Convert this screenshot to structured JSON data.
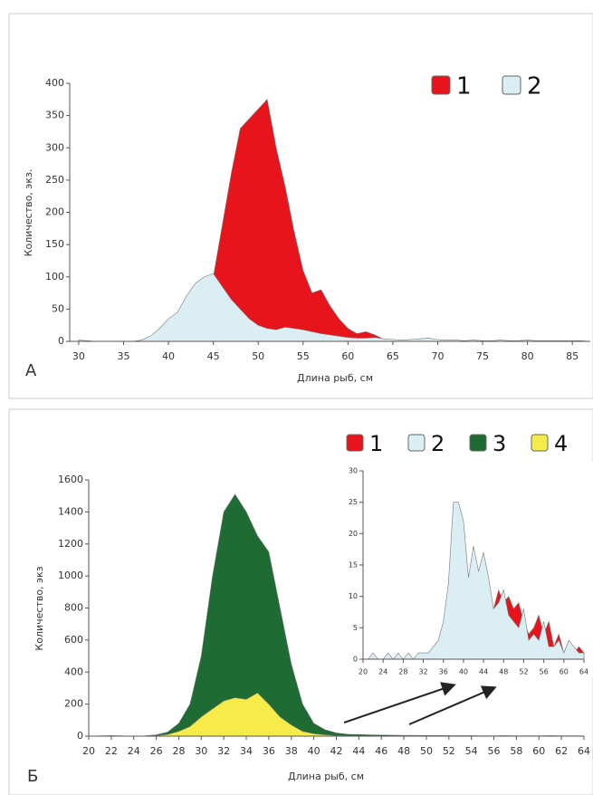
{
  "chart_data": [
    {
      "type": "area",
      "label": "А",
      "xlabel": "Длина рыб, см",
      "ylabel": "Количество, экз.",
      "x": [
        30,
        31,
        32,
        33,
        34,
        35,
        36,
        37,
        38,
        39,
        40,
        41,
        42,
        43,
        44,
        45,
        46,
        47,
        48,
        49,
        50,
        51,
        52,
        53,
        54,
        55,
        56,
        57,
        58,
        59,
        60,
        61,
        62,
        63,
        64,
        65,
        66,
        67,
        68,
        69,
        70,
        71,
        72,
        73,
        74,
        75,
        76,
        77,
        78,
        79,
        80,
        81,
        82,
        83,
        84,
        85,
        86,
        87
      ],
      "series": [
        {
          "name": "1",
          "color": "#e8141c",
          "values": [
            0,
            0,
            0,
            0,
            0,
            0,
            0,
            0,
            0,
            0,
            0,
            0,
            0,
            0,
            0,
            100,
            180,
            260,
            330,
            345,
            360,
            375,
            300,
            240,
            170,
            110,
            75,
            80,
            55,
            35,
            20,
            12,
            15,
            10,
            3,
            1,
            0,
            0,
            0,
            0,
            0,
            0,
            0,
            0,
            0,
            0,
            0,
            0,
            0,
            0,
            0,
            0,
            0,
            0,
            0,
            0,
            0,
            0
          ]
        },
        {
          "name": "2",
          "color": "#daeef3",
          "values": [
            2,
            1,
            0,
            0,
            0,
            0,
            0,
            2,
            8,
            20,
            35,
            45,
            70,
            90,
            100,
            105,
            85,
            65,
            50,
            35,
            25,
            20,
            18,
            22,
            20,
            18,
            15,
            12,
            10,
            8,
            6,
            5,
            5,
            6,
            4,
            3,
            2,
            3,
            4,
            5,
            3,
            2,
            2,
            1,
            2,
            1,
            1,
            2,
            1,
            1,
            2,
            1,
            1,
            1,
            1,
            1,
            1,
            0
          ]
        }
      ],
      "xlim": [
        29,
        87
      ],
      "xticks": [
        30,
        35,
        40,
        45,
        50,
        55,
        60,
        65,
        70,
        75,
        80,
        85
      ],
      "ylim": [
        0,
        400
      ],
      "yticks": [
        0,
        50,
        100,
        150,
        200,
        250,
        300,
        350,
        400
      ]
    },
    {
      "type": "area",
      "label": "Б",
      "xlabel": "Длина рыб, см",
      "ylabel": "Количество, экз",
      "x": [
        20,
        21,
        22,
        23,
        24,
        25,
        26,
        27,
        28,
        29,
        30,
        31,
        32,
        33,
        34,
        35,
        36,
        37,
        38,
        39,
        40,
        41,
        42,
        43,
        44,
        45,
        46,
        47,
        48,
        49,
        50,
        51,
        52,
        53,
        54,
        55,
        56,
        57,
        58,
        59,
        60,
        61,
        62,
        63,
        64
      ],
      "series": [
        {
          "name": "3",
          "color": "#1e6b34",
          "values": [
            0,
            2,
            3,
            2,
            0,
            2,
            8,
            25,
            80,
            200,
            500,
            1000,
            1400,
            1510,
            1400,
            1250,
            1150,
            800,
            450,
            200,
            80,
            40,
            20,
            12,
            10,
            8,
            7,
            6,
            5,
            5,
            4,
            4,
            3,
            3,
            3,
            2,
            2,
            3,
            2,
            2,
            2,
            3,
            2,
            2,
            2
          ]
        },
        {
          "name": "4",
          "color": "#f5ec4a",
          "values": [
            0,
            0,
            0,
            0,
            0,
            0,
            3,
            10,
            30,
            60,
            120,
            170,
            220,
            240,
            230,
            270,
            200,
            120,
            70,
            30,
            15,
            8,
            4,
            2,
            0,
            0,
            0,
            0,
            0,
            0,
            0,
            0,
            0,
            0,
            0,
            0,
            0,
            0,
            0,
            0,
            0,
            0,
            0,
            0,
            0
          ]
        }
      ],
      "xlim": [
        20,
        64
      ],
      "xticks": [
        20,
        22,
        24,
        26,
        28,
        30,
        32,
        34,
        36,
        38,
        40,
        42,
        44,
        46,
        48,
        50,
        52,
        54,
        56,
        58,
        60,
        62,
        64
      ],
      "ylim": [
        0,
        1600
      ],
      "yticks": [
        0,
        200,
        400,
        600,
        800,
        1000,
        1200,
        1400,
        1600
      ]
    },
    {
      "type": "area",
      "x": [
        20,
        21,
        22,
        23,
        24,
        25,
        26,
        27,
        28,
        29,
        30,
        31,
        32,
        33,
        34,
        35,
        36,
        37,
        38,
        39,
        40,
        41,
        42,
        43,
        44,
        45,
        46,
        47,
        48,
        49,
        50,
        51,
        52,
        53,
        54,
        55,
        56,
        57,
        58,
        59,
        60,
        61,
        62,
        63,
        64
      ],
      "series": [
        {
          "name": "1",
          "color": "#e8141c",
          "values": [
            0,
            0,
            0,
            0,
            0,
            0,
            0,
            0,
            0,
            0,
            0,
            0,
            0,
            0,
            0,
            0,
            1,
            0,
            1,
            2,
            3,
            4,
            7,
            5,
            9,
            6,
            8,
            11,
            9,
            10,
            8,
            9,
            6,
            4,
            5,
            7,
            4,
            6,
            2,
            4,
            1,
            3,
            1,
            2,
            1
          ]
        },
        {
          "name": "2",
          "color": "#daeef3",
          "values": [
            0,
            0,
            1,
            0,
            0,
            1,
            0,
            1,
            0,
            1,
            0,
            1,
            1,
            1,
            2,
            3,
            6,
            12,
            25,
            25,
            22,
            13,
            18,
            14,
            17,
            13,
            8,
            9,
            11,
            7,
            6,
            5,
            8,
            3,
            4,
            3,
            6,
            2,
            2,
            3,
            1,
            3,
            2,
            1,
            1
          ]
        }
      ],
      "xlim": [
        20,
        64
      ],
      "xticks": [
        20,
        24,
        28,
        32,
        36,
        40,
        44,
        48,
        52,
        56,
        60,
        64
      ],
      "ylim": [
        0,
        30
      ],
      "yticks": [
        0,
        5,
        10,
        15,
        20,
        25,
        30
      ]
    }
  ]
}
